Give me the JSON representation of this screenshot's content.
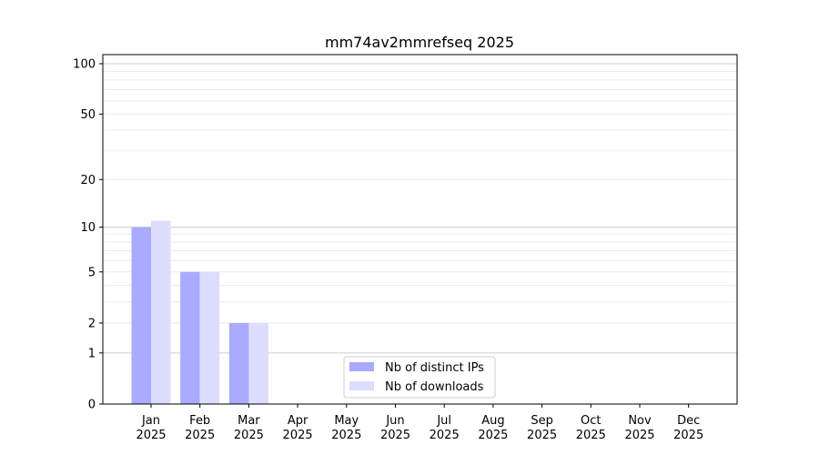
{
  "chart_data": {
    "type": "bar",
    "title": "mm74av2mmrefseq 2025",
    "xlabel": "",
    "ylabel": "",
    "y_scale": "symlog",
    "ylim": [
      0,
      113
    ],
    "y_ticks": [
      0,
      1,
      2,
      5,
      10,
      20,
      50,
      100
    ],
    "y_tick_labels": [
      "0",
      "1",
      "2",
      "5",
      "10",
      "20",
      "50",
      "100"
    ],
    "grid": true,
    "legend_position": "bottom-center",
    "categories": [
      "Jan\n2025",
      "Feb\n2025",
      "Mar\n2025",
      "Apr\n2025",
      "May\n2025",
      "Jun\n2025",
      "Jul\n2025",
      "Aug\n2025",
      "Sep\n2025",
      "Oct\n2025",
      "Nov\n2025",
      "Dec\n2025"
    ],
    "series": [
      {
        "name": "Nb of distinct IPs",
        "color": "#aaaaff",
        "values": [
          10,
          5,
          2,
          0,
          0,
          0,
          0,
          0,
          0,
          0,
          0,
          0
        ]
      },
      {
        "name": "Nb of downloads",
        "color": "#ddddff",
        "values": [
          11,
          5,
          2,
          0,
          0,
          0,
          0,
          0,
          0,
          0,
          0,
          0
        ]
      }
    ]
  }
}
